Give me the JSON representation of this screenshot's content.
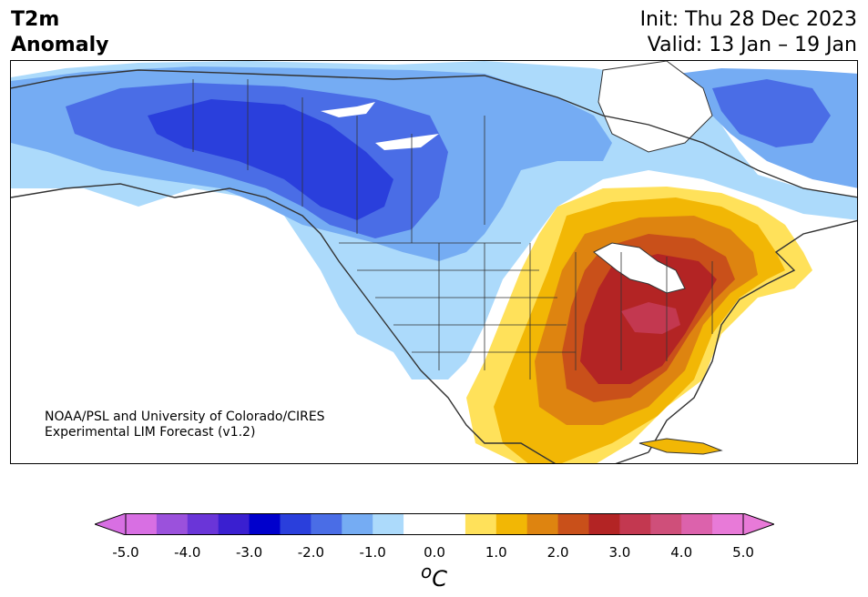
{
  "title": {
    "line1": "T2m",
    "line2": "Anomaly"
  },
  "init": "Init: Thu 28 Dec 2023",
  "valid": "Valid: 13 Jan – 19 Jan",
  "credit": {
    "line1": "NOAA/PSL and University of Colorado/CIRES",
    "line2": "Experimental LIM Forecast (v1.2)"
  },
  "colorbar": {
    "unit_prefix": "o",
    "unit_main": "C",
    "ticks": [
      "-5.0",
      "-4.0",
      "-3.0",
      "-2.0",
      "-1.0",
      "0.0",
      "1.0",
      "2.0",
      "3.0",
      "4.0",
      "5.0"
    ],
    "colors": [
      "#d86fe3",
      "#9b51dc",
      "#6a35d8",
      "#3a1fd0",
      "#0000cc",
      "#2a3fdc",
      "#4a6de6",
      "#75acf3",
      "#acdafb",
      "#ffffff",
      "#ffffff",
      "#ffe15a",
      "#f2b705",
      "#de8410",
      "#c9501a",
      "#b32424",
      "#c33850",
      "#cf4f7a",
      "#dc62ac",
      "#e87ad8"
    ],
    "under_color": "#d86fe3",
    "over_color": "#e87ad8"
  },
  "map": {
    "region": "North America",
    "field": "2m temperature anomaly",
    "colors": {
      "cold1": "#acdafb",
      "cold2": "#75acf3",
      "cold3": "#4a6de6",
      "cold4": "#2a3fdc",
      "warm1": "#ffe15a",
      "warm2": "#f2b705",
      "warm3": "#de8410",
      "warm4": "#c9501a",
      "warm5": "#b32424",
      "warm6": "#c33850",
      "coast": "#333333"
    }
  }
}
